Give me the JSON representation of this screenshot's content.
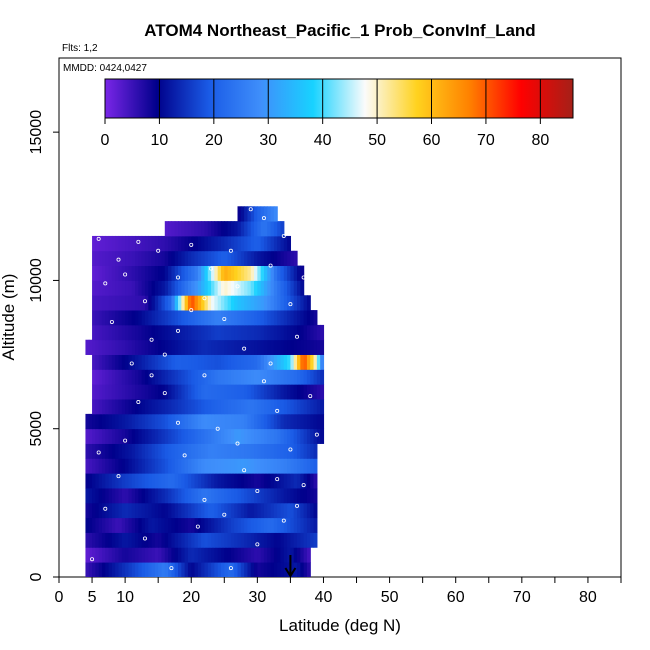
{
  "chart_data": {
    "type": "heatmap",
    "title": "ATOM4 Northeast_Pacific_1 Prob_ConvInf_Land",
    "flights_note": "Flts: 1,2",
    "date_note": "MMDD: 0424,0427",
    "xlabel": "Latitude (deg N)",
    "ylabel": "Altitude (m)",
    "xlim": [
      0,
      85
    ],
    "ylim": [
      0,
      17500
    ],
    "x_ticks": [
      0,
      5,
      10,
      20,
      30,
      40,
      50,
      60,
      70,
      80
    ],
    "x_minor_ticks": [
      15,
      25,
      35,
      45,
      55,
      65,
      75,
      85
    ],
    "y_ticks": [
      0,
      5000,
      10000,
      15000
    ],
    "grid": false,
    "legend_position": "top",
    "colorbar": {
      "range": [
        0,
        86
      ],
      "ticks": [
        0,
        10,
        20,
        30,
        40,
        50,
        60,
        70,
        80
      ],
      "colors": [
        "#7a26e8",
        "#00008b",
        "#1a5be6",
        "#3f8ffb",
        "#18d2ff",
        "#fbfbfb",
        "#ffd21e",
        "#ff8200",
        "#ff0000",
        "#a52018"
      ]
    },
    "arrow_marker": {
      "latitude": 35,
      "altitude": 0
    },
    "altitude_bins": [
      {
        "alt": 250,
        "x0": 4,
        "x1": 38,
        "pts": [
          [
            4,
            5
          ],
          [
            12,
            18
          ],
          [
            16,
            25
          ],
          [
            20,
            10
          ],
          [
            26,
            22
          ],
          [
            30,
            8
          ],
          [
            36,
            12
          ],
          [
            38,
            6
          ]
        ]
      },
      {
        "alt": 750,
        "x0": 4,
        "x1": 38,
        "pts": [
          [
            4,
            2
          ],
          [
            10,
            8
          ],
          [
            15,
            5
          ],
          [
            20,
            14
          ],
          [
            25,
            10
          ],
          [
            30,
            6
          ],
          [
            35,
            12
          ],
          [
            38,
            4
          ]
        ]
      },
      {
        "alt": 1250,
        "x0": 4,
        "x1": 39,
        "pts": [
          [
            4,
            6
          ],
          [
            10,
            12
          ],
          [
            15,
            8
          ],
          [
            22,
            18
          ],
          [
            28,
            14
          ],
          [
            33,
            10
          ],
          [
            39,
            16
          ]
        ]
      },
      {
        "alt": 1750,
        "x0": 4,
        "x1": 39,
        "pts": [
          [
            4,
            10
          ],
          [
            9,
            5
          ],
          [
            14,
            12
          ],
          [
            20,
            8
          ],
          [
            26,
            16
          ],
          [
            32,
            22
          ],
          [
            39,
            12
          ]
        ]
      },
      {
        "alt": 2250,
        "x0": 4,
        "x1": 39,
        "pts": [
          [
            4,
            8
          ],
          [
            10,
            14
          ],
          [
            16,
            10
          ],
          [
            23,
            20
          ],
          [
            29,
            12
          ],
          [
            35,
            18
          ],
          [
            39,
            10
          ]
        ]
      },
      {
        "alt": 2750,
        "x0": 4,
        "x1": 39,
        "pts": [
          [
            4,
            12
          ],
          [
            10,
            6
          ],
          [
            16,
            14
          ],
          [
            22,
            24
          ],
          [
            28,
            18
          ],
          [
            34,
            12
          ],
          [
            39,
            8
          ]
        ]
      },
      {
        "alt": 3250,
        "x0": 4,
        "x1": 39,
        "pts": [
          [
            4,
            9
          ],
          [
            10,
            16
          ],
          [
            17,
            22
          ],
          [
            24,
            12
          ],
          [
            30,
            8
          ],
          [
            36,
            14
          ],
          [
            39,
            6
          ]
        ]
      },
      {
        "alt": 3750,
        "x0": 4,
        "x1": 39,
        "pts": [
          [
            4,
            4
          ],
          [
            10,
            10
          ],
          [
            16,
            18
          ],
          [
            22,
            28
          ],
          [
            28,
            30
          ],
          [
            34,
            26
          ],
          [
            39,
            20
          ]
        ]
      },
      {
        "alt": 4250,
        "x0": 4,
        "x1": 39,
        "pts": [
          [
            4,
            6
          ],
          [
            11,
            12
          ],
          [
            17,
            20
          ],
          [
            23,
            26
          ],
          [
            29,
            24
          ],
          [
            35,
            20
          ],
          [
            39,
            14
          ]
        ]
      },
      {
        "alt": 4750,
        "x0": 4,
        "x1": 40,
        "pts": [
          [
            4,
            3
          ],
          [
            10,
            8
          ],
          [
            15,
            14
          ],
          [
            21,
            22
          ],
          [
            27,
            30
          ],
          [
            33,
            24
          ],
          [
            40,
            10
          ]
        ]
      },
      {
        "alt": 5250,
        "x0": 4,
        "x1": 40,
        "pts": [
          [
            4,
            8
          ],
          [
            10,
            12
          ],
          [
            16,
            18
          ],
          [
            22,
            28
          ],
          [
            28,
            26
          ],
          [
            34,
            14
          ],
          [
            40,
            10
          ]
        ]
      },
      {
        "alt": 5750,
        "x0": 5,
        "x1": 40,
        "pts": [
          [
            5,
            4
          ],
          [
            11,
            9
          ],
          [
            17,
            14
          ],
          [
            23,
            20
          ],
          [
            29,
            24
          ],
          [
            35,
            18
          ],
          [
            40,
            12
          ]
        ]
      },
      {
        "alt": 6250,
        "x0": 5,
        "x1": 40,
        "pts": [
          [
            5,
            3
          ],
          [
            10,
            6
          ],
          [
            16,
            10
          ],
          [
            22,
            22
          ],
          [
            28,
            20
          ],
          [
            34,
            12
          ],
          [
            40,
            6
          ]
        ]
      },
      {
        "alt": 6750,
        "x0": 5,
        "x1": 40,
        "pts": [
          [
            5,
            2
          ],
          [
            12,
            8
          ],
          [
            18,
            16
          ],
          [
            24,
            24
          ],
          [
            30,
            28
          ],
          [
            36,
            22
          ],
          [
            40,
            14
          ]
        ]
      },
      {
        "alt": 7250,
        "x0": 5,
        "x1": 40,
        "pts": [
          [
            5,
            4
          ],
          [
            12,
            12
          ],
          [
            18,
            20
          ],
          [
            24,
            18
          ],
          [
            30,
            22
          ],
          [
            35,
            40
          ],
          [
            37,
            72
          ],
          [
            39,
            48
          ],
          [
            40,
            20
          ]
        ]
      },
      {
        "alt": 7750,
        "x0": 4,
        "x1": 40,
        "pts": [
          [
            4,
            3
          ],
          [
            10,
            6
          ],
          [
            16,
            10
          ],
          [
            22,
            14
          ],
          [
            28,
            12
          ],
          [
            34,
            10
          ],
          [
            40,
            8
          ]
        ]
      },
      {
        "alt": 8250,
        "x0": 5,
        "x1": 40,
        "pts": [
          [
            5,
            4
          ],
          [
            12,
            8
          ],
          [
            18,
            12
          ],
          [
            24,
            16
          ],
          [
            30,
            14
          ],
          [
            36,
            10
          ],
          [
            40,
            6
          ]
        ]
      },
      {
        "alt": 8750,
        "x0": 5,
        "x1": 39,
        "pts": [
          [
            5,
            5
          ],
          [
            12,
            10
          ],
          [
            18,
            18
          ],
          [
            24,
            26
          ],
          [
            30,
            20
          ],
          [
            36,
            12
          ],
          [
            39,
            8
          ]
        ]
      },
      {
        "alt": 9250,
        "x0": 5,
        "x1": 38,
        "pts": [
          [
            5,
            4
          ],
          [
            13,
            6
          ],
          [
            17,
            22
          ],
          [
            20,
            72
          ],
          [
            23,
            48
          ],
          [
            27,
            36
          ],
          [
            31,
            30
          ],
          [
            35,
            18
          ],
          [
            38,
            10
          ]
        ]
      },
      {
        "alt": 9750,
        "x0": 5,
        "x1": 37,
        "pts": [
          [
            5,
            3
          ],
          [
            11,
            5
          ],
          [
            16,
            12
          ],
          [
            21,
            30
          ],
          [
            25,
            50
          ],
          [
            29,
            42
          ],
          [
            33,
            24
          ],
          [
            37,
            10
          ]
        ]
      },
      {
        "alt": 10250,
        "x0": 5,
        "x1": 37,
        "pts": [
          [
            5,
            2
          ],
          [
            11,
            6
          ],
          [
            16,
            10
          ],
          [
            21,
            26
          ],
          [
            25,
            62
          ],
          [
            29,
            52
          ],
          [
            33,
            22
          ],
          [
            37,
            8
          ]
        ]
      },
      {
        "alt": 10750,
        "x0": 5,
        "x1": 36,
        "pts": [
          [
            5,
            3
          ],
          [
            11,
            5
          ],
          [
            16,
            8
          ],
          [
            20,
            14
          ],
          [
            25,
            20
          ],
          [
            30,
            12
          ],
          [
            36,
            6
          ]
        ]
      },
      {
        "alt": 11250,
        "x0": 5,
        "x1": 35,
        "pts": [
          [
            5,
            2
          ],
          [
            11,
            4
          ],
          [
            16,
            6
          ],
          [
            21,
            10
          ],
          [
            25,
            14
          ],
          [
            30,
            20
          ],
          [
            35,
            10
          ]
        ]
      },
      {
        "alt": 11750,
        "x0": 16,
        "x1": 34,
        "pts": [
          [
            16,
            3
          ],
          [
            22,
            6
          ],
          [
            27,
            12
          ],
          [
            31,
            24
          ],
          [
            34,
            16
          ]
        ]
      },
      {
        "alt": 12250,
        "x0": 27,
        "x1": 33,
        "pts": [
          [
            27,
            8
          ],
          [
            30,
            20
          ],
          [
            33,
            28
          ]
        ]
      }
    ],
    "sample_points": [
      [
        5,
        600
      ],
      [
        7,
        2300
      ],
      [
        9,
        3400
      ],
      [
        10,
        4600
      ],
      [
        12,
        5900
      ],
      [
        14,
        6800
      ],
      [
        16,
        7500
      ],
      [
        18,
        8300
      ],
      [
        20,
        9000
      ],
      [
        7,
        9900
      ],
      [
        9,
        10700
      ],
      [
        12,
        11300
      ],
      [
        15,
        11000
      ],
      [
        18,
        10100
      ],
      [
        22,
        9400
      ],
      [
        25,
        8700
      ],
      [
        28,
        7700
      ],
      [
        31,
        6600
      ],
      [
        33,
        5600
      ],
      [
        35,
        4300
      ],
      [
        37,
        3100
      ],
      [
        34,
        1900
      ],
      [
        30,
        1100
      ],
      [
        26,
        300
      ],
      [
        22,
        2600
      ],
      [
        19,
        4100
      ],
      [
        24,
        5000
      ],
      [
        28,
        3600
      ],
      [
        32,
        7200
      ],
      [
        36,
        8100
      ],
      [
        38,
        6100
      ],
      [
        39,
        4800
      ],
      [
        29,
        12400
      ],
      [
        31,
        12100
      ],
      [
        34,
        11500
      ],
      [
        27,
        9800
      ],
      [
        23,
        10400
      ],
      [
        20,
        11200
      ],
      [
        13,
        9300
      ],
      [
        16,
        6200
      ],
      [
        11,
        7200
      ],
      [
        8,
        8600
      ],
      [
        6,
        4200
      ],
      [
        13,
        1300
      ],
      [
        17,
        300
      ],
      [
        21,
        1700
      ],
      [
        25,
        2100
      ],
      [
        30,
        2900
      ],
      [
        35,
        9200
      ],
      [
        37,
        10100
      ],
      [
        32,
        10500
      ],
      [
        26,
        11000
      ],
      [
        6,
        11400
      ],
      [
        10,
        10200
      ],
      [
        14,
        8000
      ],
      [
        18,
        5200
      ],
      [
        22,
        6800
      ],
      [
        27,
        4500
      ],
      [
        33,
        3300
      ],
      [
        36,
        2400
      ]
    ]
  }
}
